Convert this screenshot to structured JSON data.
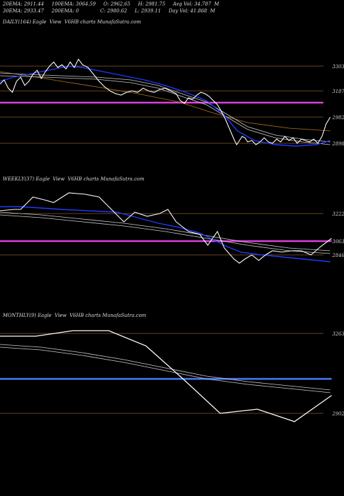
{
  "header": {
    "line1": "20EMA: 2911.44     100EMA: 3064.59     O: 2962.65     H: 2981.75     Avg Vol: 34.787  M",
    "line2": "30EMA: 2933.47     200EMA: 0              C: 2980.62     L: 2939.11     Day Vol: 41.868  M"
  },
  "chart_data": [
    {
      "type": "line",
      "title": "DAILY(164) Eagle  View  V6HB charts MunafaSutra.com",
      "levels": [
        3303,
        3187,
        2982,
        2898
      ],
      "colors": {
        "price": "#ffffff",
        "ema_fast": "#1f3cff",
        "ema_slow": "#cccccc",
        "ema_long": "#b8731f",
        "highlight": "#e040e0",
        "level": "#8a5a2a"
      },
      "ylim": [
        2830,
        3370
      ]
    },
    {
      "type": "line",
      "title": "WEEKLY(37) Eagle  View  V6HB charts MunafaSutra.com",
      "levels": [
        3222,
        3063,
        2846
      ],
      "colors": {
        "price": "#ffffff",
        "ema_fast": "#1f3cff",
        "ema_slow": "#cccccc",
        "highlight": "#e040e0",
        "level": "#8a5a2a"
      },
      "ylim": [
        2760,
        3300
      ]
    },
    {
      "type": "line",
      "title": "MONTHLY(9) Eagle  View  V6HB charts MunafaSutra.com",
      "levels": [
        3263,
        2902
      ],
      "colors": {
        "price": "#ffffff",
        "ema_slow": "#cccccc",
        "highlight": "#4a7cff",
        "level": "#8a5a2a"
      },
      "ylim": [
        2820,
        3340
      ]
    }
  ]
}
